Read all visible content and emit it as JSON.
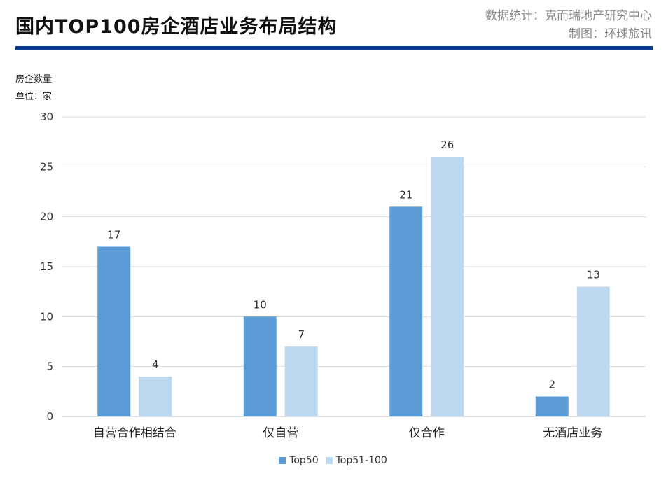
{
  "header": {
    "title": "国内TOP100房企酒店业务布局结构",
    "source_line1": "数据统计：克而瑞地产研究中心",
    "source_line2": "制图：环球旅讯"
  },
  "colors": {
    "accent": "#0a3d91",
    "series1": "#5b9bd5",
    "series2": "#bdd7ee"
  },
  "chart_data": {
    "type": "bar",
    "ylabel_line1": "房企数量",
    "ylabel_line2": "单位：家",
    "categories": [
      "自营合作相结合",
      "仅自营",
      "仅合作",
      "无酒店业务"
    ],
    "series": [
      {
        "name": "Top50",
        "values": [
          17,
          10,
          21,
          2
        ]
      },
      {
        "name": "Top51-100",
        "values": [
          4,
          7,
          26,
          13
        ]
      }
    ],
    "ylim": [
      0,
      30
    ],
    "yticks": [
      0,
      5,
      10,
      15,
      20,
      25,
      30
    ],
    "grid": true,
    "legend": "bottom-center"
  }
}
